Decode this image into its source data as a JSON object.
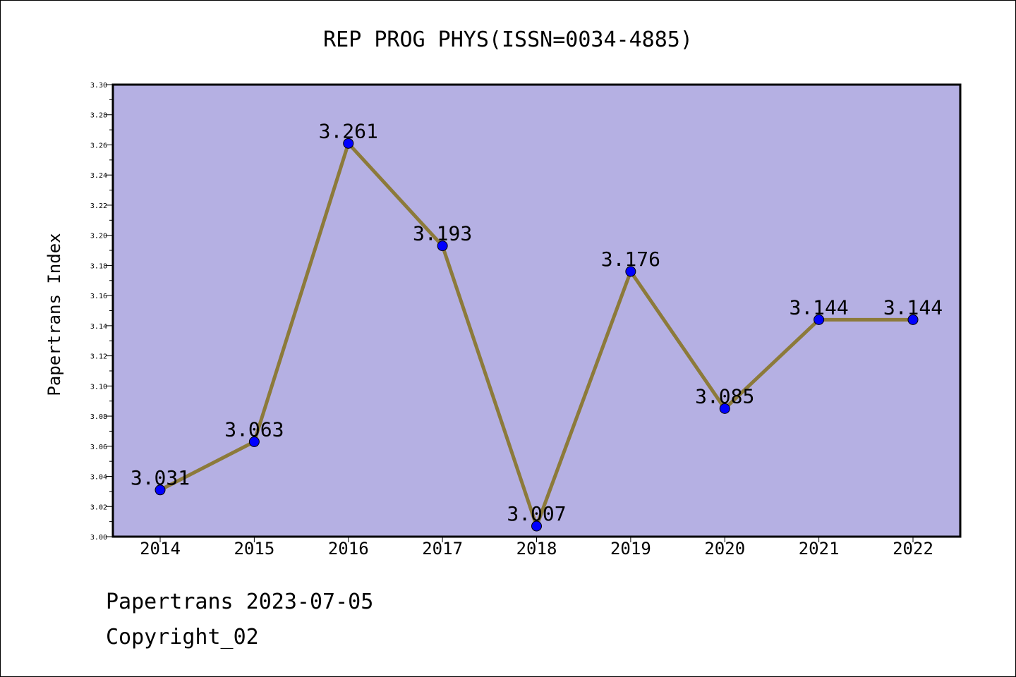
{
  "chart_data": {
    "type": "line",
    "title": "REP PROG PHYS(ISSN=0034-4885)",
    "xlabel": "",
    "ylabel": "Papertrans Index",
    "categories": [
      "2014",
      "2015",
      "2016",
      "2017",
      "2018",
      "2019",
      "2020",
      "2021",
      "2022"
    ],
    "series": [
      {
        "values": [
          3.031,
          3.063,
          3.261,
          3.193,
          3.007,
          3.176,
          3.085,
          3.144,
          3.144
        ],
        "labels": [
          "3.031",
          "3.063",
          "3.261",
          "3.193",
          "3.007",
          "3.176",
          "3.085",
          "3.144",
          "3.144"
        ]
      }
    ],
    "ylim": [
      3.0,
      3.3
    ],
    "yticks": [
      "3.00",
      "3.02",
      "3.04",
      "3.06",
      "3.08",
      "3.10",
      "3.12",
      "3.14",
      "3.16",
      "3.18",
      "3.20",
      "3.22",
      "3.24",
      "3.26",
      "3.28",
      "3.30"
    ],
    "grid": false,
    "legend": "none",
    "colors": {
      "plot_background": "#b5b0e3",
      "line": "#8c7a3a",
      "marker": "#0000ff"
    }
  },
  "footer": {
    "line1": "Papertrans 2023-07-05",
    "line2": "Copyright_02"
  }
}
